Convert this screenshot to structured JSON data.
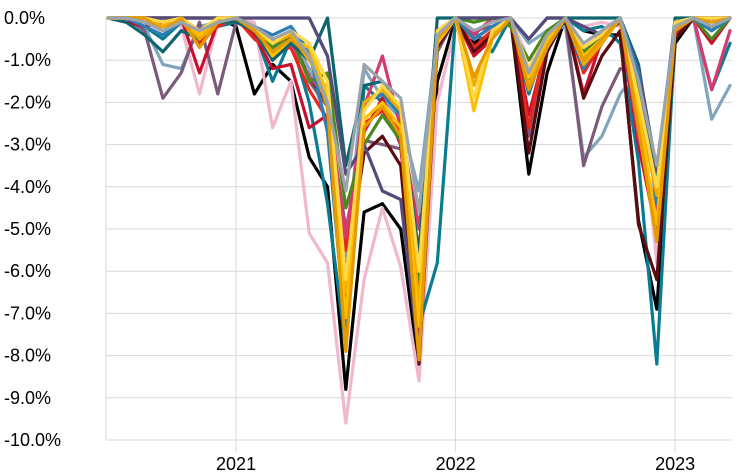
{
  "chart_data": {
    "type": "line",
    "title": "",
    "xlabel": "",
    "ylabel": "",
    "ylim": [
      -10,
      0
    ],
    "y_tick_labels": [
      "0.0%",
      "-1.0%",
      "-2.0%",
      "-3.0%",
      "-4.0%",
      "-5.0%",
      "-6.0%",
      "-7.0%",
      "-8.0%",
      "-9.0%",
      "-10.0%"
    ],
    "x_tick_labels": [
      "2021",
      "2022",
      "2023"
    ],
    "x_period": "monthly, Jun 2020 to Apr 2023",
    "x": [
      "2020-06",
      "2020-07",
      "2020-08",
      "2020-09",
      "2020-10",
      "2020-11",
      "2020-12",
      "2021-01",
      "2021-02",
      "2021-03",
      "2021-04",
      "2021-05",
      "2021-06",
      "2021-07",
      "2021-08",
      "2021-09",
      "2021-10",
      "2021-11",
      "2021-12",
      "2022-01",
      "2022-02",
      "2022-03",
      "2022-04",
      "2022-05",
      "2022-06",
      "2022-07",
      "2022-08",
      "2022-09",
      "2022-10",
      "2022-11",
      "2022-12",
      "2023-01",
      "2023-02",
      "2023-03",
      "2023-04"
    ],
    "grid": true,
    "legend": "none",
    "series": [
      {
        "color": "#000000",
        "values": [
          0,
          0,
          0,
          0,
          0,
          0,
          0,
          -0.2,
          -1.8,
          -1.1,
          -1.5,
          -3.3,
          -4.0,
          -8.8,
          -4.6,
          -4.4,
          -5.0,
          -8.3,
          -1.5,
          0,
          -0.6,
          -0.3,
          0,
          -3.7,
          -1.3,
          0,
          -0.3,
          -0.4,
          -0.4,
          -4.8,
          -6.9,
          -0.6,
          0,
          0,
          0
        ]
      },
      {
        "color": "#f0b8ce",
        "values": [
          0,
          0,
          -0.1,
          0,
          -0.2,
          -1.8,
          -0.1,
          0,
          -0.1,
          -2.6,
          -1.5,
          -5.1,
          -5.8,
          -9.6,
          -6.2,
          -4.5,
          -5.9,
          -8.6,
          -2.0,
          -0.2,
          -0.5,
          -0.3,
          0,
          -1.0,
          -0.8,
          0,
          -0.2,
          -0.1,
          -0.2,
          -1.6,
          -5.8,
          -0.4,
          0,
          -0.3,
          0
        ]
      },
      {
        "color": "#0a7c92",
        "values": [
          0,
          -0.1,
          -0.2,
          -0.5,
          -0.1,
          -0.4,
          -0.2,
          -0.1,
          -0.3,
          -1.5,
          -0.5,
          -2.0,
          -4.4,
          -7.8,
          -1.6,
          -2.0,
          -3.0,
          -7.3,
          -5.8,
          0,
          -0.3,
          -0.8,
          0,
          -1.8,
          -0.5,
          0,
          -0.3,
          -0.2,
          -0.6,
          -3.4,
          -8.2,
          -0.4,
          0,
          -1.7,
          -0.6
        ]
      },
      {
        "color": "#7fa6bd",
        "values": [
          0,
          0,
          -0.2,
          -1.1,
          -1.2,
          -0.2,
          -0.1,
          -0.1,
          -0.3,
          -0.8,
          -0.4,
          -1.2,
          -2.5,
          -5.8,
          -1.2,
          -1.9,
          -2.4,
          -4.1,
          -0.4,
          0,
          -0.1,
          0,
          0,
          -0.6,
          -0.3,
          -0.2,
          -3.3,
          -2.8,
          -1.8,
          -1.2,
          -3.8,
          -0.2,
          0,
          -2.4,
          -1.6
        ]
      },
      {
        "color": "#7b5a7b",
        "values": [
          0,
          0,
          -0.3,
          -1.9,
          -1.3,
          -0.1,
          -1.8,
          -0.1,
          -0.2,
          -1.0,
          -0.4,
          -1.5,
          -2.1,
          -5.0,
          -2.9,
          -3.0,
          -3.1,
          -5.5,
          -0.8,
          0,
          -0.3,
          -0.2,
          0,
          -2.8,
          -0.6,
          0,
          -3.5,
          -2.1,
          -1.2,
          -1.3,
          -4.0,
          -0.3,
          0,
          0,
          0
        ]
      },
      {
        "color": "#c8102e",
        "values": [
          0,
          -0.1,
          -0.2,
          -0.1,
          0,
          -1.3,
          -0.1,
          0,
          -0.4,
          -1.2,
          -1.1,
          -2.6,
          -2.3,
          -6.8,
          -2.7,
          -1.9,
          -3.0,
          -7.8,
          -0.5,
          0,
          -0.9,
          -0.5,
          0,
          -2.3,
          -0.6,
          0,
          -1.8,
          -0.5,
          0,
          -3.0,
          -5.1,
          -0.4,
          0,
          -0.6,
          0
        ]
      },
      {
        "color": "#e8261a",
        "values": [
          0,
          0,
          -0.1,
          -0.2,
          0,
          -0.6,
          -0.2,
          0,
          -0.5,
          -0.8,
          -0.7,
          -1.7,
          -2.4,
          -5.5,
          -2.5,
          -2.2,
          -2.7,
          -6.5,
          -0.6,
          0,
          -0.7,
          -0.3,
          0,
          -2.6,
          -0.4,
          0,
          -1.3,
          -0.6,
          0,
          -2.5,
          -4.8,
          -0.2,
          0,
          -0.2,
          0
        ]
      },
      {
        "color": "#5a0c10",
        "values": [
          0,
          0,
          0,
          0,
          0,
          -0.4,
          0,
          0,
          -0.2,
          -0.5,
          -0.5,
          -1.4,
          -2.0,
          -6.1,
          -3.2,
          -2.8,
          -3.5,
          -8.2,
          -0.7,
          0,
          -0.8,
          -0.4,
          0,
          -3.2,
          -0.8,
          0,
          -1.9,
          -0.9,
          -0.3,
          -4.9,
          -6.2,
          -0.5,
          0,
          -0.3,
          0
        ]
      },
      {
        "color": "#d63a6e",
        "values": [
          0,
          0,
          -0.1,
          -0.3,
          -0.1,
          -0.5,
          -0.1,
          0,
          -0.3,
          -0.9,
          -0.6,
          -1.4,
          -1.9,
          -5.2,
          -2.1,
          -0.9,
          -2.6,
          -5.0,
          -0.3,
          0,
          -0.4,
          0,
          0,
          -1.5,
          -0.4,
          0,
          -0.9,
          -0.3,
          0,
          -2.8,
          -4.6,
          -0.3,
          0,
          -1.7,
          -0.3
        ]
      },
      {
        "color": "#4a8a1c",
        "values": [
          0,
          0,
          0,
          -0.2,
          0,
          -0.4,
          0,
          0,
          -0.2,
          -0.7,
          -0.4,
          -1.5,
          -1.3,
          -4.5,
          -3.0,
          -2.3,
          -2.9,
          -6.2,
          -0.4,
          0,
          -0.1,
          0,
          -0.2,
          -1.0,
          -0.3,
          0,
          -0.8,
          -0.4,
          0,
          -1.8,
          -4.1,
          -0.2,
          0,
          -0.5,
          0
        ]
      },
      {
        "color": "#0e6570",
        "values": [
          0,
          -0.1,
          -0.4,
          -0.8,
          -0.3,
          -0.5,
          -0.1,
          -0.1,
          -0.3,
          -1.0,
          -0.6,
          -1.0,
          0,
          -3.5,
          -1.6,
          -1.5,
          -2.3,
          -5.6,
          0,
          0,
          0,
          0,
          0,
          -0.5,
          0,
          0,
          0,
          0,
          0,
          -1.1,
          -3.9,
          0,
          0,
          0,
          0
        ]
      },
      {
        "color": "#554a7a",
        "values": [
          0,
          0,
          0,
          0,
          0,
          0,
          0,
          0,
          0,
          0,
          0,
          0,
          -0.9,
          -3.7,
          -3.0,
          -4.1,
          -4.3,
          -8.0,
          -0.5,
          0,
          0,
          0,
          0,
          -0.5,
          0,
          0,
          -0.2,
          -0.4,
          -0.1,
          -1.2,
          -3.6,
          -0.1,
          0,
          0,
          0
        ]
      },
      {
        "color": "#2b7fb5",
        "values": [
          0,
          0,
          -0.2,
          -0.4,
          -0.1,
          -0.3,
          -0.1,
          0,
          -0.2,
          -0.4,
          -0.2,
          -0.8,
          -2.7,
          -7.5,
          -2.0,
          -1.8,
          -2.3,
          -7.0,
          -0.5,
          0,
          -0.5,
          -0.2,
          0,
          -1.5,
          -0.5,
          0,
          -1.2,
          -0.4,
          0,
          -1.3,
          -4.4,
          -0.2,
          0,
          -0.3,
          0
        ]
      },
      {
        "color": "#f2a900",
        "values": [
          0,
          0,
          0,
          -0.2,
          0,
          -0.5,
          -0.1,
          0,
          -0.3,
          -0.6,
          -0.4,
          -1.0,
          -1.7,
          -6.5,
          -2.0,
          -1.7,
          -2.2,
          -6.8,
          -0.4,
          0,
          -1.6,
          -0.4,
          0,
          -1.6,
          -0.6,
          0,
          -1.1,
          -0.6,
          0,
          -2.1,
          -4.2,
          -0.2,
          0,
          -0.1,
          0
        ]
      },
      {
        "color": "#ffc000",
        "values": [
          0,
          0,
          0,
          -0.1,
          0,
          -0.4,
          0,
          0,
          -0.2,
          -0.9,
          -0.5,
          -0.7,
          -1.8,
          -7.1,
          -2.4,
          -2.0,
          -2.6,
          -7.3,
          -0.6,
          0,
          -2.2,
          -0.5,
          0,
          -1.4,
          -0.5,
          0,
          -0.9,
          -0.5,
          0,
          -2.3,
          -4.9,
          -0.1,
          0,
          0,
          0
        ]
      },
      {
        "color": "#ffd84a",
        "values": [
          0,
          0,
          0,
          -0.1,
          0,
          -0.3,
          0,
          0,
          -0.2,
          -0.6,
          -0.3,
          -0.6,
          -1.5,
          -6.2,
          -2.2,
          -1.6,
          -2.1,
          -6.0,
          -0.3,
          0,
          -1.9,
          -0.3,
          0,
          -1.2,
          -0.4,
          0,
          -0.7,
          -0.4,
          0,
          -1.9,
          -4.0,
          -0.1,
          0,
          0,
          0
        ]
      },
      {
        "color": "#e59b00",
        "values": [
          0,
          0,
          0,
          -0.3,
          0,
          -0.7,
          -0.1,
          0,
          -0.3,
          -0.8,
          -0.5,
          -0.9,
          -2.1,
          -7.9,
          -2.6,
          -2.1,
          -2.8,
          -8.1,
          -0.5,
          0,
          -1.4,
          -0.5,
          0,
          -1.7,
          -0.7,
          0,
          -1.0,
          -0.5,
          0,
          -2.6,
          -5.3,
          -0.3,
          0,
          -0.1,
          0
        ]
      },
      {
        "color": "#9aa4aa",
        "values": [
          0,
          0,
          -0.1,
          -0.3,
          -0.1,
          -0.3,
          -0.1,
          0,
          -0.2,
          -0.5,
          -0.3,
          -0.9,
          -2.0,
          -4.1,
          -1.1,
          -1.5,
          -1.9,
          -4.6,
          -0.4,
          0,
          -0.3,
          -0.1,
          0,
          -1.3,
          -0.4,
          0,
          -0.6,
          -0.3,
          0,
          -1.5,
          -3.5,
          -0.2,
          0,
          -0.2,
          0
        ]
      }
    ]
  }
}
